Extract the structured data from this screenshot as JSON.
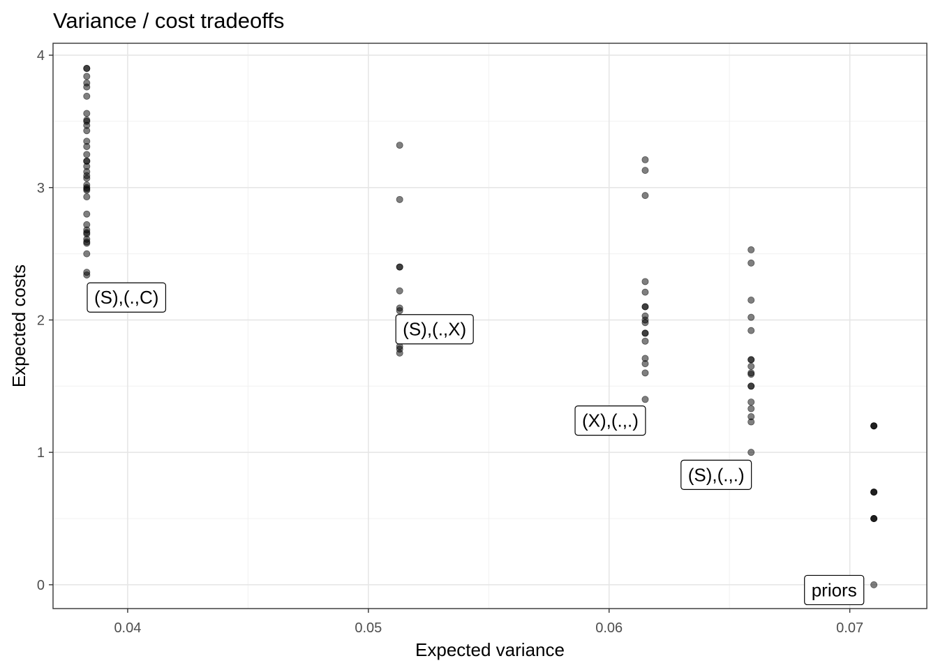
{
  "chart_data": {
    "type": "scatter",
    "title": "Variance / cost tradeoffs",
    "xlabel": "Expected variance",
    "ylabel": "Expected costs",
    "xlim": [
      0.0369,
      0.0732
    ],
    "ylim": [
      -0.18,
      4.09
    ],
    "x_ticks": [
      {
        "value": 0.04,
        "label": "0.04"
      },
      {
        "value": 0.05,
        "label": "0.05"
      },
      {
        "value": 0.06,
        "label": "0.06"
      },
      {
        "value": 0.07,
        "label": "0.07"
      }
    ],
    "y_ticks": [
      {
        "value": 0,
        "label": "0"
      },
      {
        "value": 1,
        "label": "1"
      },
      {
        "value": 2,
        "label": "2"
      },
      {
        "value": 3,
        "label": "3"
      },
      {
        "value": 4,
        "label": "4"
      }
    ],
    "grid": true,
    "point_color": "#000000",
    "point_opacity": 0.5,
    "series": [
      {
        "x": 0.0383,
        "y": [
          3.9,
          3.9,
          3.84,
          3.79,
          3.76,
          3.69,
          3.56,
          3.51,
          3.5,
          3.47,
          3.43,
          3.35,
          3.31,
          3.25,
          3.2,
          3.2,
          3.16,
          3.12,
          3.09,
          3.07,
          3.02,
          3.0,
          2.99,
          2.98,
          2.93,
          2.8,
          2.72,
          2.68,
          2.66,
          2.65,
          2.61,
          2.59,
          2.58,
          2.5,
          2.36,
          2.34
        ]
      },
      {
        "x": 0.0513,
        "y": [
          3.32,
          2.91,
          2.4,
          2.4,
          2.22,
          2.09,
          2.07,
          1.95,
          1.9,
          1.8,
          1.78,
          1.75
        ]
      },
      {
        "x": 0.0615,
        "y": [
          3.21,
          3.13,
          2.94,
          2.29,
          2.21,
          2.1,
          2.1,
          2.03,
          2.0,
          1.98,
          1.9,
          1.9,
          1.84,
          1.71,
          1.67,
          1.6,
          1.4
        ]
      },
      {
        "x": 0.0659,
        "y": [
          2.53,
          2.43,
          2.15,
          2.02,
          1.92,
          1.7,
          1.7,
          1.65,
          1.6,
          1.59,
          1.5,
          1.5,
          1.38,
          1.33,
          1.27,
          1.23,
          1.0
        ]
      },
      {
        "x": 0.071,
        "y": [
          1.2,
          1.2,
          1.2,
          0.7,
          0.7,
          0.7,
          0.5,
          0.5,
          0.5,
          0.0
        ]
      }
    ],
    "annotations": [
      {
        "text": "(S),(.,C)",
        "x": 0.03995,
        "y": 2.17
      },
      {
        "text": "(S),(.,X)",
        "x": 0.05275,
        "y": 1.93
      },
      {
        "text": "(X),(.,.)",
        "x": 0.06005,
        "y": 1.24
      },
      {
        "text": "(S),(.,.)",
        "x": 0.06445,
        "y": 0.83
      },
      {
        "text": "priors",
        "x": 0.06935,
        "y": -0.04
      }
    ]
  }
}
